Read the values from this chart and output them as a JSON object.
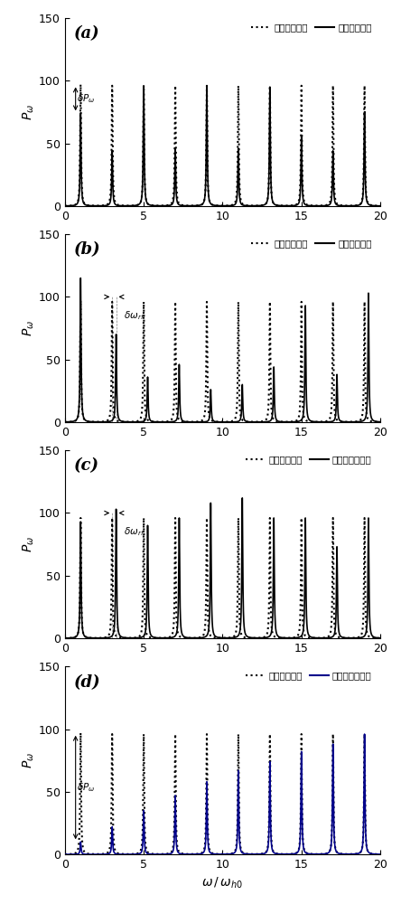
{
  "panels": [
    "(a)",
    "(b)",
    "(c)",
    "(d)"
  ],
  "legend_solid": [
    "漏水管道系统",
    "堵塞管道系统",
    "未知支管道系统",
    "空气囊管道系统"
  ],
  "legend_dot": "无损管道系统",
  "xlim": [
    0,
    20
  ],
  "ylim": [
    0,
    150
  ],
  "xticks": [
    0,
    5,
    10,
    15,
    20
  ],
  "yticks": [
    0,
    50,
    100,
    150
  ],
  "dot_color": "#000000",
  "solid_color_abc": "#000000",
  "solid_color_d": "#00008B",
  "panel_a": {
    "dot_peaks": [
      [
        1.0,
        97
      ],
      [
        3.0,
        96
      ],
      [
        5.0,
        96
      ],
      [
        7.0,
        96
      ],
      [
        9.0,
        96
      ],
      [
        11.0,
        96
      ],
      [
        13.0,
        96
      ],
      [
        15.0,
        96
      ],
      [
        17.0,
        96
      ],
      [
        19.0,
        96
      ]
    ],
    "solid_peaks": [
      [
        1.0,
        74
      ],
      [
        3.0,
        44
      ],
      [
        5.0,
        96
      ],
      [
        7.0,
        46
      ],
      [
        9.0,
        96
      ],
      [
        11.0,
        46
      ],
      [
        13.0,
        95
      ],
      [
        15.0,
        56
      ],
      [
        17.0,
        44
      ],
      [
        19.0,
        75
      ]
    ]
  },
  "panel_b": {
    "dot_peaks": [
      [
        1.0,
        97
      ],
      [
        3.0,
        96
      ],
      [
        5.0,
        96
      ],
      [
        7.0,
        96
      ],
      [
        9.0,
        96
      ],
      [
        11.0,
        96
      ],
      [
        13.0,
        96
      ],
      [
        15.0,
        96
      ],
      [
        17.0,
        96
      ],
      [
        19.0,
        96
      ]
    ],
    "solid_peaks": [
      [
        1.0,
        115
      ],
      [
        3.25,
        70
      ],
      [
        5.25,
        36
      ],
      [
        7.25,
        46
      ],
      [
        9.25,
        26
      ],
      [
        11.25,
        30
      ],
      [
        13.25,
        44
      ],
      [
        15.25,
        93
      ],
      [
        17.25,
        38
      ],
      [
        19.25,
        103
      ]
    ]
  },
  "panel_c": {
    "dot_peaks": [
      [
        1.0,
        96
      ],
      [
        3.0,
        96
      ],
      [
        5.0,
        96
      ],
      [
        7.0,
        96
      ],
      [
        9.0,
        96
      ],
      [
        11.0,
        96
      ],
      [
        13.0,
        96
      ],
      [
        15.0,
        96
      ],
      [
        17.0,
        96
      ],
      [
        19.0,
        96
      ]
    ],
    "solid_peaks": [
      [
        1.0,
        93
      ],
      [
        3.25,
        103
      ],
      [
        5.25,
        90
      ],
      [
        7.25,
        96
      ],
      [
        9.25,
        108
      ],
      [
        11.25,
        112
      ],
      [
        13.25,
        96
      ],
      [
        15.25,
        96
      ],
      [
        17.25,
        73
      ],
      [
        19.25,
        96
      ]
    ]
  },
  "panel_d": {
    "dot_peaks": [
      [
        1.0,
        97
      ],
      [
        3.0,
        96
      ],
      [
        5.0,
        96
      ],
      [
        7.0,
        96
      ],
      [
        9.0,
        96
      ],
      [
        11.0,
        96
      ],
      [
        13.0,
        96
      ],
      [
        15.0,
        96
      ],
      [
        17.0,
        96
      ],
      [
        19.0,
        96
      ]
    ],
    "solid_peaks": [
      [
        1.0,
        10
      ],
      [
        3.0,
        22
      ],
      [
        5.0,
        35
      ],
      [
        7.0,
        47
      ],
      [
        9.0,
        58
      ],
      [
        11.0,
        67
      ],
      [
        13.0,
        74
      ],
      [
        15.0,
        82
      ],
      [
        17.0,
        88
      ],
      [
        19.0,
        96
      ]
    ]
  }
}
